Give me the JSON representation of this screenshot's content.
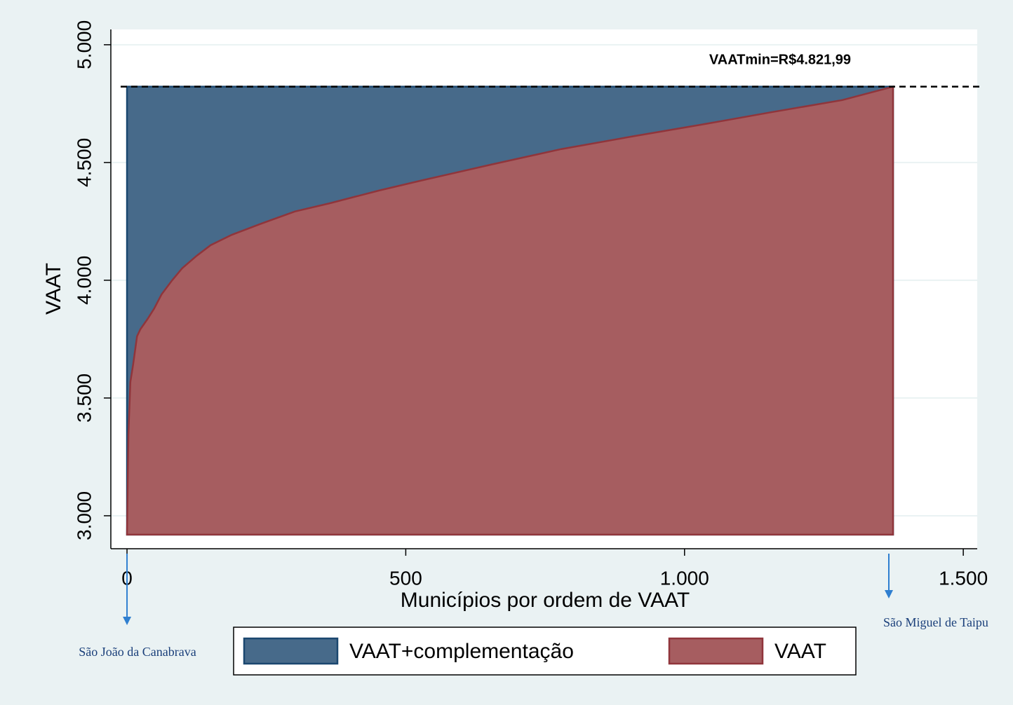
{
  "chart_data": {
    "type": "area",
    "x": [
      0,
      2.5,
      6,
      11,
      18,
      24,
      37,
      49,
      62,
      81,
      99,
      125,
      150,
      188,
      238,
      301,
      364,
      452,
      527,
      653,
      779,
      905,
      1031,
      1157,
      1283,
      1374
    ],
    "series": [
      {
        "name": "VAAT+complementação",
        "color": "#476a8a",
        "stroke": "#1a476f",
        "values": [
          4821.99,
          4821.99,
          4821.99,
          4821.99,
          4821.99,
          4821.99,
          4821.99,
          4821.99,
          4821.99,
          4821.99,
          4821.99,
          4821.99,
          4821.99,
          4821.99,
          4821.99,
          4821.99,
          4821.99,
          4821.99,
          4821.99,
          4821.99,
          4821.99,
          4821.99,
          4821.99,
          4821.99,
          4821.99,
          4821.99
        ]
      },
      {
        "name": "VAAT",
        "color": "#a65d60",
        "stroke": "#90353b",
        "values": [
          2920,
          3345,
          3568,
          3643,
          3762,
          3792,
          3836,
          3881,
          3940,
          4000,
          4051,
          4104,
          4149,
          4193,
          4238,
          4292,
          4327,
          4381,
          4423,
          4491,
          4557,
          4610,
          4661,
          4714,
          4765,
          4821.99
        ]
      }
    ],
    "xlabel": "Municípios por ordem de VAAT",
    "ylabel": "VAAT",
    "xlim": [
      -29,
      1525
    ],
    "ylim": [
      2860,
      5065
    ],
    "xticks": [
      0,
      500,
      {
        "value": 1000,
        "label": "1.000"
      },
      {
        "value": 1500,
        "label": "1.500"
      }
    ],
    "yticks": [
      {
        "value": 3000,
        "label": "3.000"
      },
      {
        "value": 3500,
        "label": "3.500"
      },
      {
        "value": 4000,
        "label": "4.000"
      },
      {
        "value": 4500,
        "label": "4.500"
      },
      {
        "value": 5000,
        "label": "5.000"
      }
    ],
    "grid": true,
    "reference_line": {
      "value": 4821.99,
      "label": "VAATmin=R$4.821,99"
    },
    "annotations": [
      "São João da Canabrava",
      "São Miguel de Taipu"
    ],
    "legend": "bottom"
  }
}
